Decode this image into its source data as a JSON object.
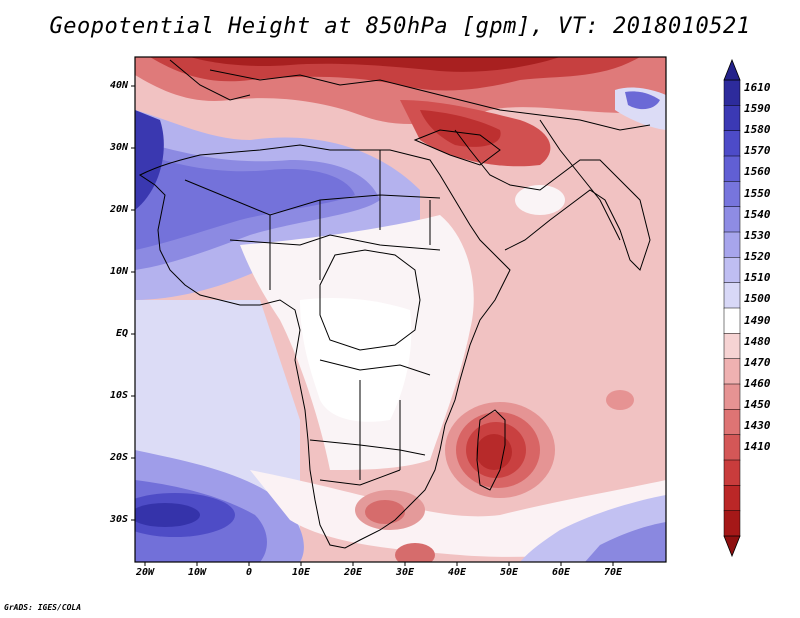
{
  "title": "Geopotential Height at 850hPa [gpm], VT: 2018010521",
  "footer": "GrADS: IGES/COLA",
  "map": {
    "lat_labels": [
      "40N",
      "30N",
      "20N",
      "10N",
      "EQ",
      "10S",
      "20S",
      "30S"
    ],
    "lon_labels": [
      "20W",
      "10W",
      "0",
      "10E",
      "20E",
      "30E",
      "40E",
      "50E",
      "60E",
      "70E"
    ]
  },
  "colorbar": {
    "levels": [
      "1610",
      "1590",
      "1580",
      "1570",
      "1560",
      "1550",
      "1540",
      "1530",
      "1520",
      "1510",
      "1500",
      "1490",
      "1480",
      "1470",
      "1460",
      "1450",
      "1430",
      "1410"
    ],
    "colors": [
      "#2d2b9c",
      "#3b39b4",
      "#4d4bc8",
      "#615fd4",
      "#7775dd",
      "#8e8ce4",
      "#a7a5ec",
      "#bfbef2",
      "#d8d8f7",
      "#ffffff",
      "#f6d3d3",
      "#efb1b1",
      "#e69393",
      "#de7474",
      "#d45757",
      "#c93c3c",
      "#bb2727",
      "#a51818"
    ],
    "top_arrow_color": "#24228a",
    "bottom_arrow_color": "#8e1010"
  }
}
